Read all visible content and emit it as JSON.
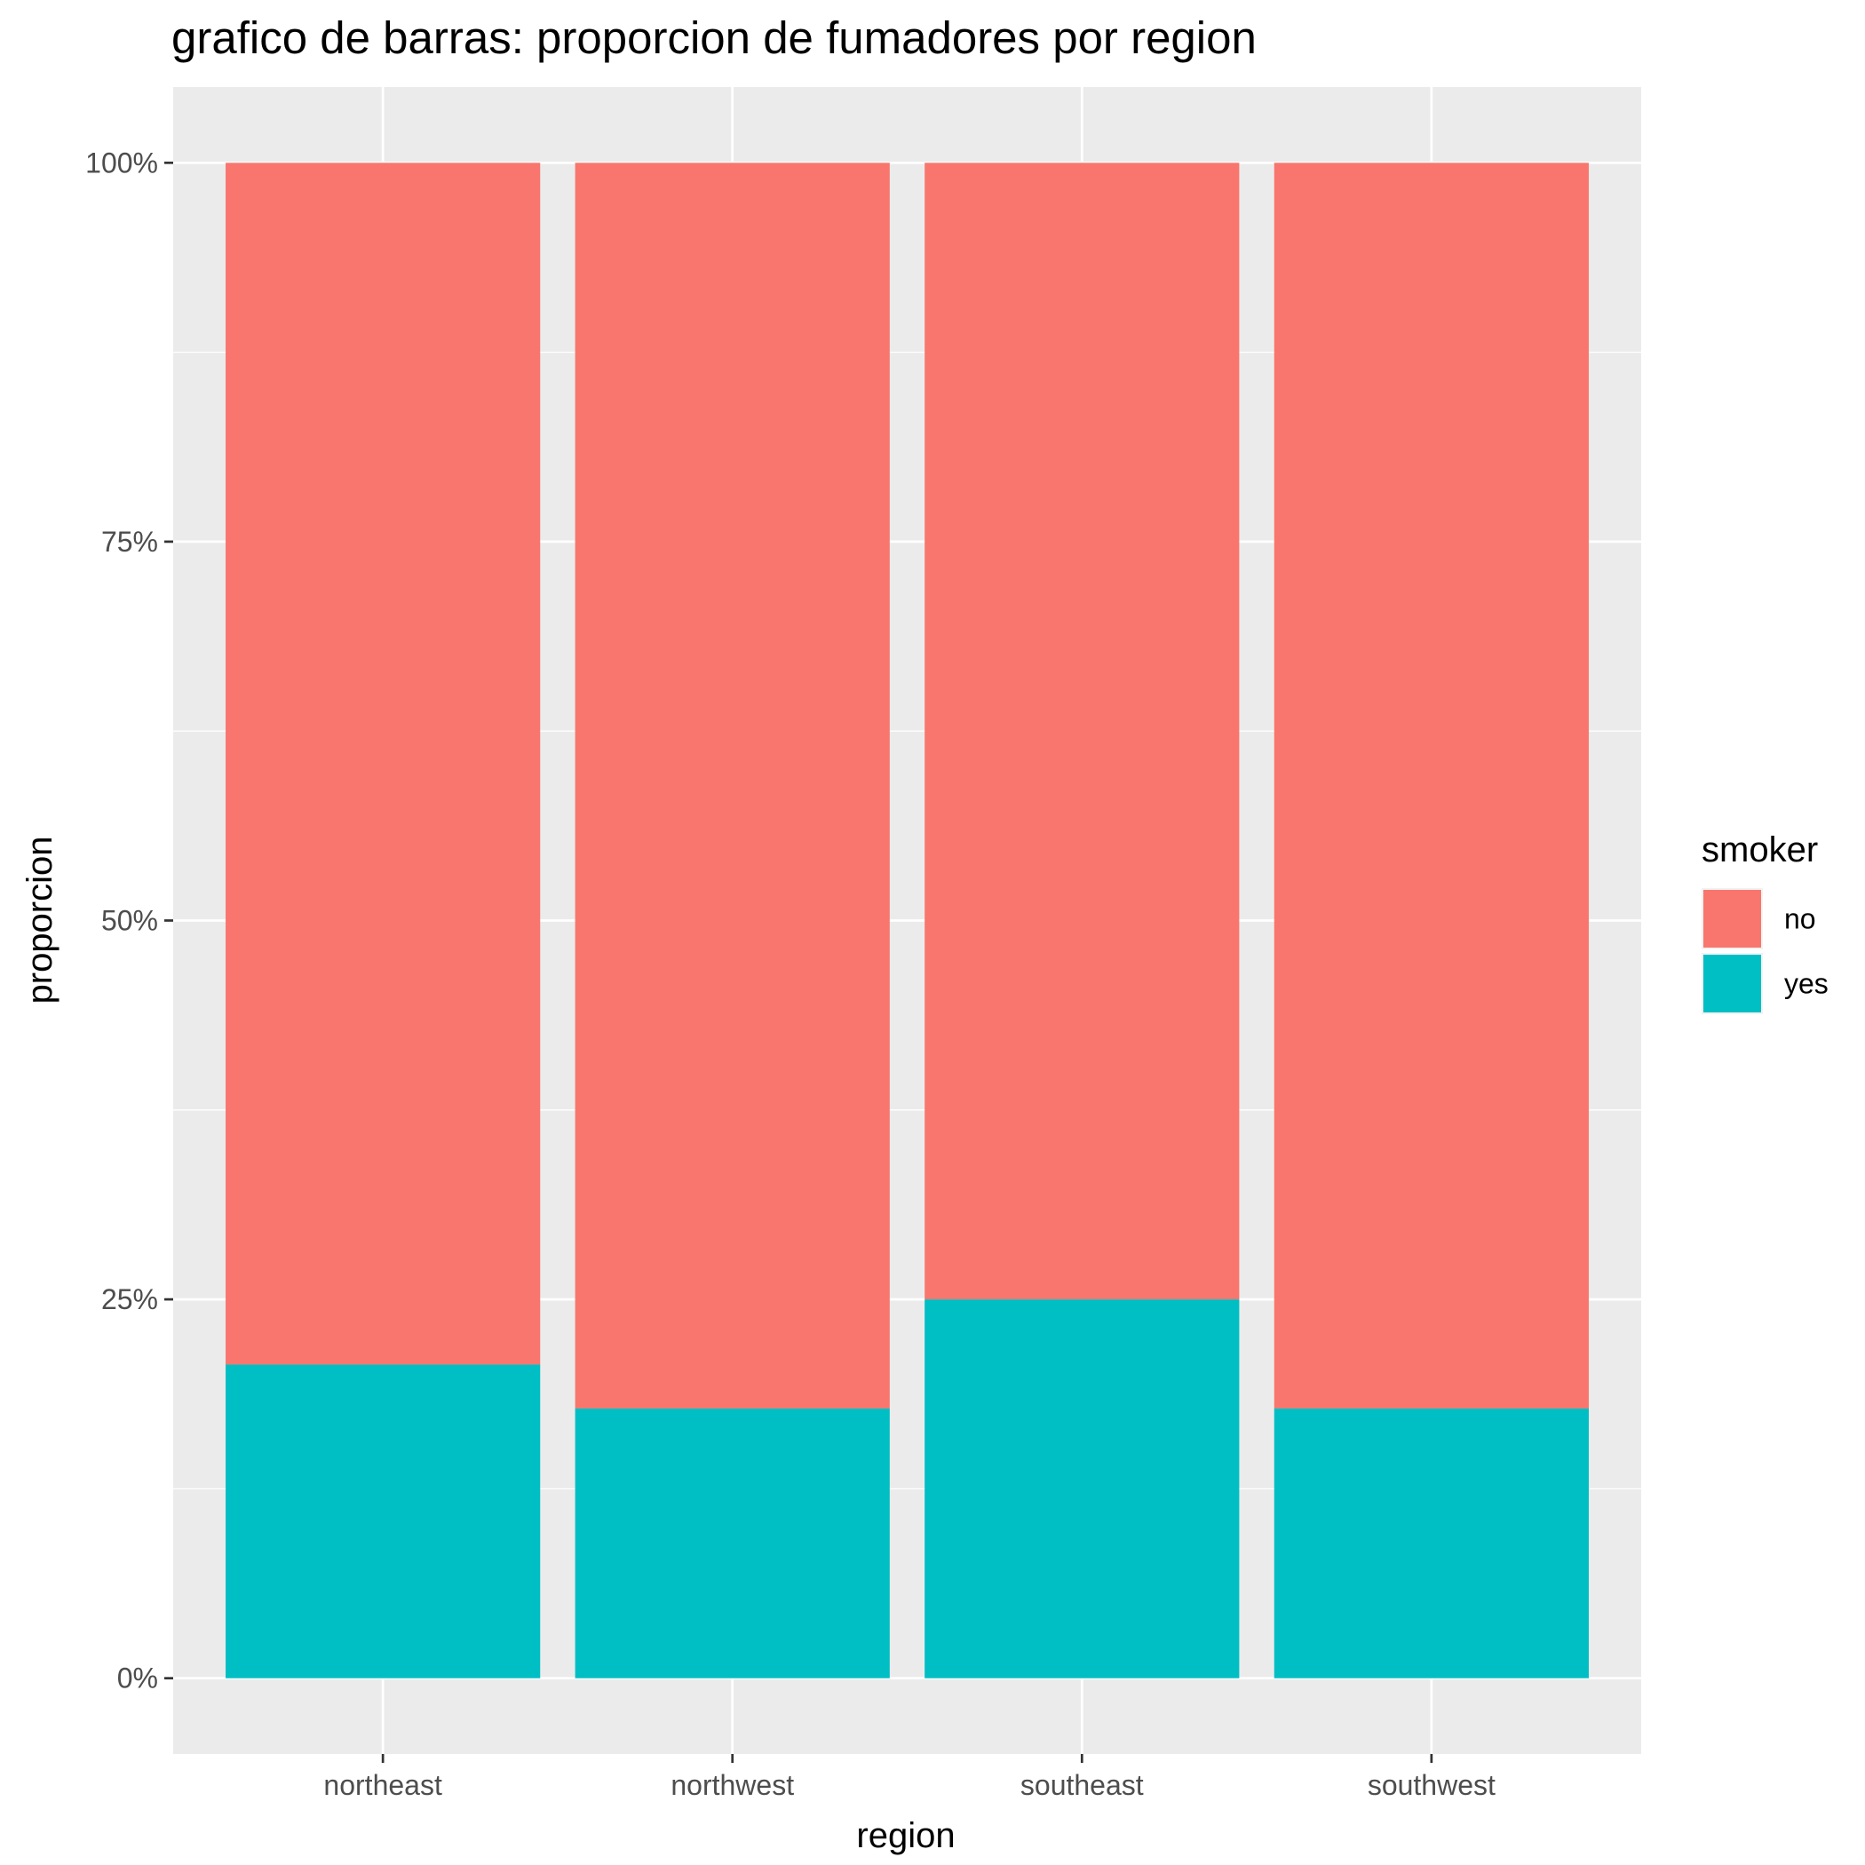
{
  "chart_data": {
    "type": "bar",
    "stacked": true,
    "title": "grafico de barras: proporcion de fumadores por region",
    "xlabel": "region",
    "ylabel": "proporcion",
    "categories": [
      "northeast",
      "northwest",
      "southeast",
      "southwest"
    ],
    "series": [
      {
        "name": "no",
        "color": "#F8766D",
        "values": [
          0.793,
          0.822,
          0.75,
          0.822
        ]
      },
      {
        "name": "yes",
        "color": "#00BFC4",
        "values": [
          0.207,
          0.178,
          0.25,
          0.178
        ]
      }
    ],
    "ylim": [
      -0.05,
      1.05
    ],
    "yticks": [
      0,
      0.25,
      0.5,
      0.75,
      1
    ],
    "ytick_labels": [
      "0%",
      "25%",
      "50%",
      "75%",
      "100%"
    ],
    "grid": true,
    "legend": {
      "title": "smoker",
      "placement": "right",
      "order": [
        "no",
        "yes"
      ]
    }
  }
}
